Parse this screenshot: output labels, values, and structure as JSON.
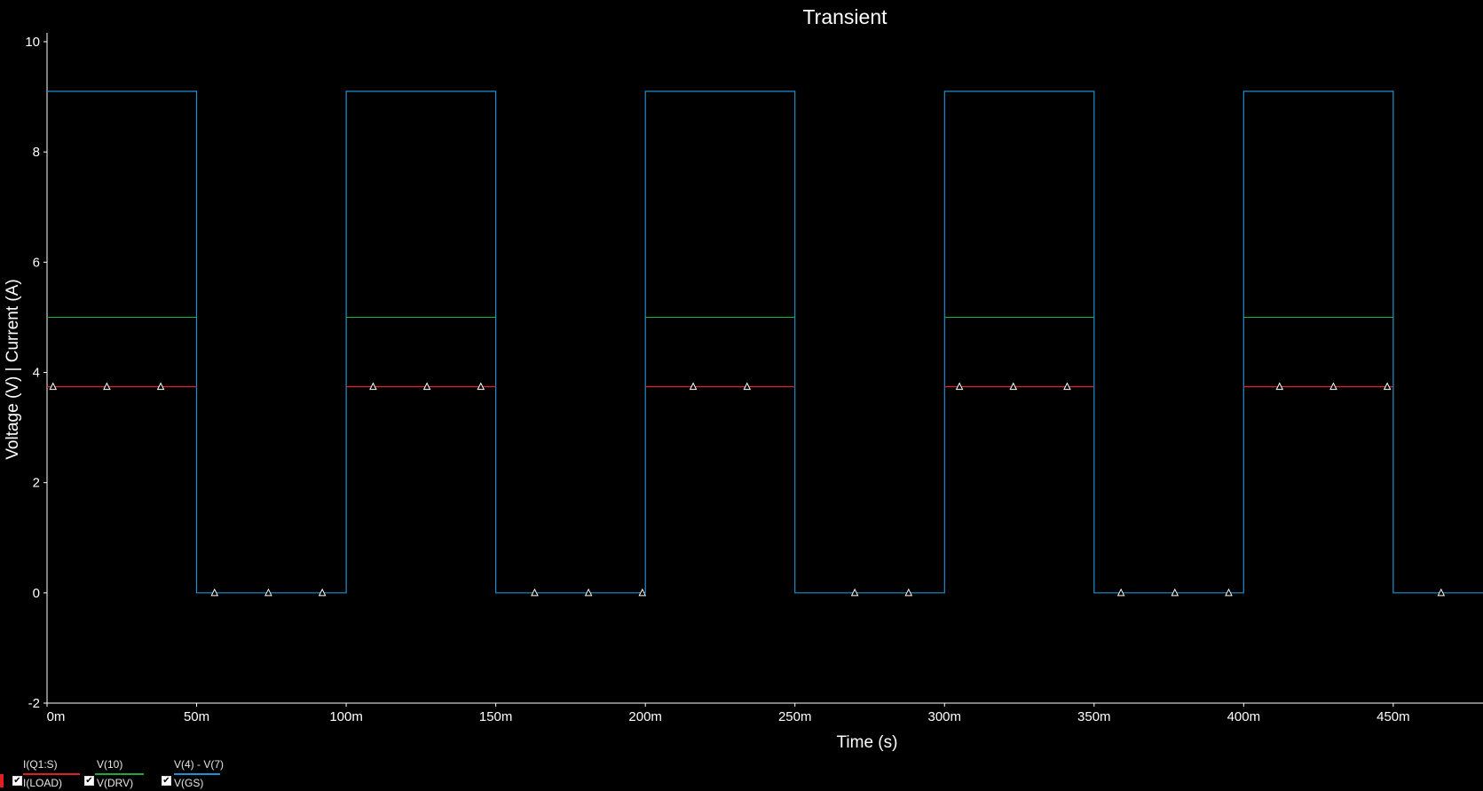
{
  "chart_data": {
    "type": "line",
    "title": "Transient",
    "xlabel": "Time (s)",
    "ylabel": "Voltage (V) | Current (A)",
    "xlim": [
      0,
      480
    ],
    "ylim": [
      -2,
      10
    ],
    "x_ticks": [
      "0m",
      "50m",
      "100m",
      "150m",
      "200m",
      "250m",
      "300m",
      "350m",
      "400m",
      "450m"
    ],
    "y_ticks": [
      "-2",
      "0",
      "2",
      "4",
      "6",
      "8",
      "10"
    ],
    "grid": false,
    "series": [
      {
        "name": "V(GS)",
        "color": "#1e8fd0",
        "x": [
          0,
          50,
          50,
          100,
          100,
          150,
          150,
          200,
          200,
          250,
          250,
          300,
          300,
          350,
          350,
          400,
          400,
          450,
          450,
          480
        ],
        "y": [
          9.1,
          9.1,
          0,
          0,
          9.1,
          9.1,
          0,
          0,
          9.1,
          9.1,
          0,
          0,
          9.1,
          9.1,
          0,
          0,
          9.1,
          9.1,
          0,
          0
        ]
      },
      {
        "name": "V(DRV)",
        "color": "#1fa83a",
        "segments": [
          [
            0,
            50
          ],
          [
            100,
            150
          ],
          [
            200,
            250
          ],
          [
            300,
            350
          ],
          [
            400,
            450
          ]
        ],
        "value": 5.0
      },
      {
        "name": "I(LOAD)",
        "color": "#e02020",
        "segments": [
          [
            0,
            50
          ],
          [
            100,
            150
          ],
          [
            200,
            250
          ],
          [
            300,
            350
          ],
          [
            400,
            450
          ]
        ],
        "value": 3.74,
        "markers": [
          2,
          20,
          38,
          109,
          127,
          145,
          216,
          234,
          305,
          323,
          341,
          412,
          430,
          448
        ]
      }
    ],
    "zero_markers": [
      56,
      74,
      92,
      163,
      181,
      199,
      270,
      288,
      359,
      377,
      395,
      466
    ]
  },
  "legend": [
    {
      "top": "I(Q1:S)",
      "bottom": "I(LOAD)",
      "color": "#e02020"
    },
    {
      "top": "V(10)",
      "bottom": "V(DRV)",
      "color": "#1fa83a"
    },
    {
      "top": "V(4) - V(7)",
      "bottom": "V(GS)",
      "color": "#1e8fd0"
    }
  ]
}
